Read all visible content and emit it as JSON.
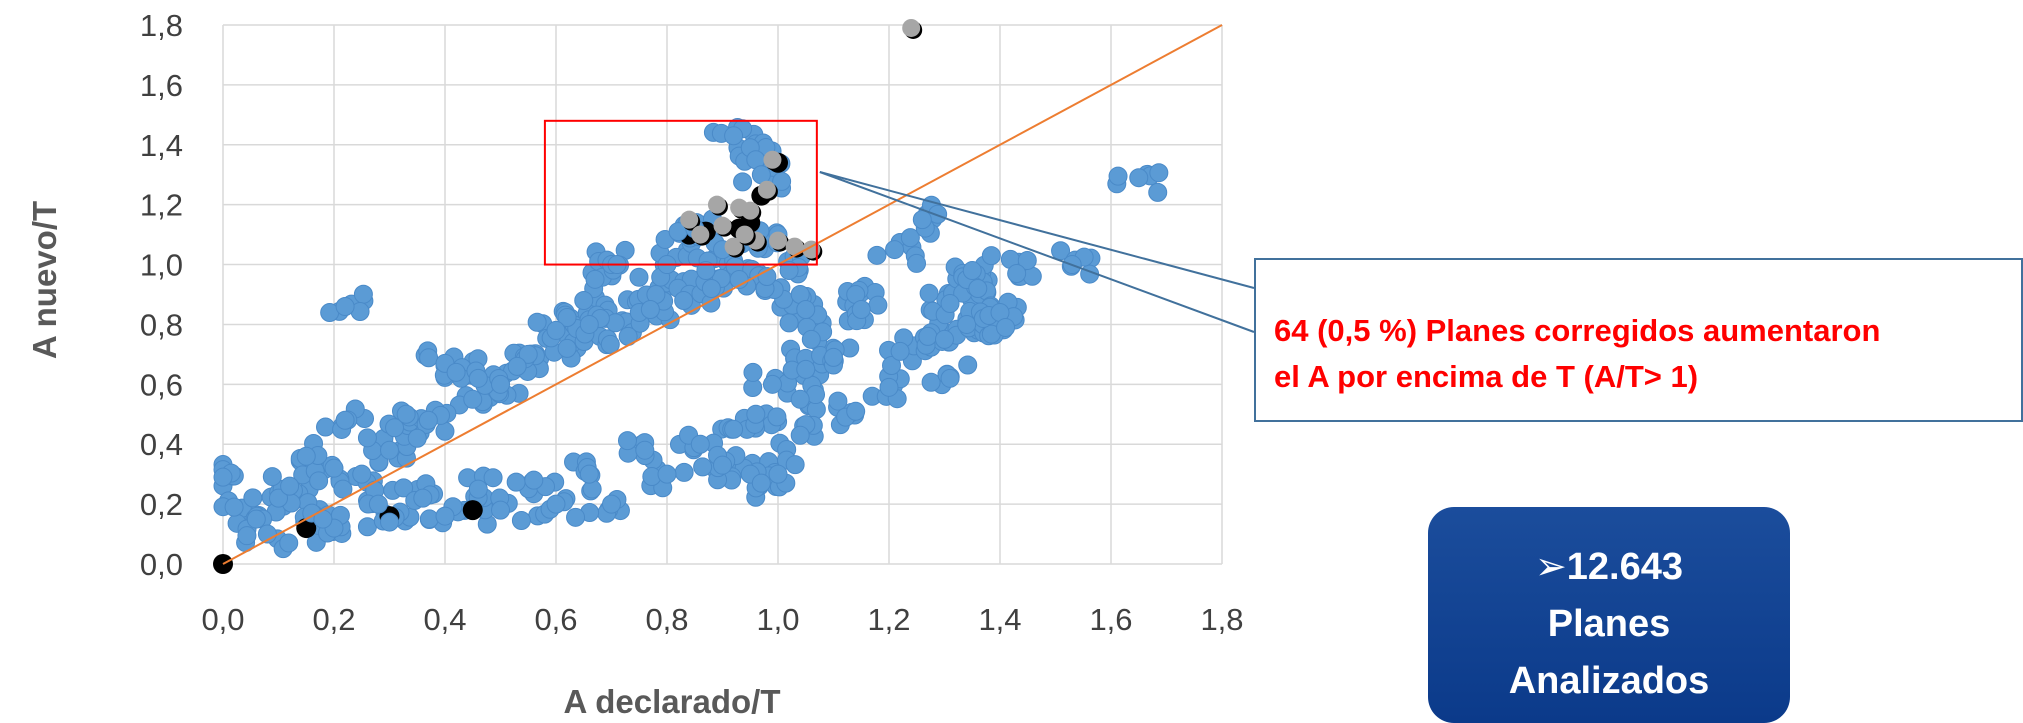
{
  "chart_data": {
    "type": "scatter",
    "title": "",
    "xlabel": "A declarado/T",
    "ylabel": "A nuevo/T",
    "xlim": [
      0,
      1.8
    ],
    "ylim": [
      0,
      1.8
    ],
    "x_ticks": [
      "0,0",
      "0,2",
      "0,4",
      "0,6",
      "0,8",
      "1,0",
      "1,2",
      "1,4",
      "1,6",
      "1,8"
    ],
    "y_ticks": [
      "0,0",
      "0,2",
      "0,4",
      "0,6",
      "0,8",
      "1,0",
      "1,2",
      "1,4",
      "1,6",
      "1,8"
    ],
    "grid": true,
    "legend": "none",
    "reference_line": {
      "from": [
        0,
        0
      ],
      "to": [
        1.8,
        1.8
      ],
      "color": "#ed7d31"
    },
    "highlight_region": {
      "x": [
        0.58,
        1.07
      ],
      "y": [
        1.0,
        1.48
      ],
      "color": "#ff0000"
    },
    "series": [
      {
        "color": "#5b9bd5",
        "description": "Planes analizados (nube densa aproximada por puntos representativos)",
        "points": [
          [
            0.0,
            0.29
          ],
          [
            0.02,
            0.19
          ],
          [
            0.22,
            0.86
          ],
          [
            0.22,
            0.48
          ],
          [
            0.15,
            0.36
          ],
          [
            0.1,
            0.22
          ],
          [
            0.12,
            0.26
          ],
          [
            0.2,
            0.32
          ],
          [
            0.25,
            0.3
          ],
          [
            0.3,
            0.38
          ],
          [
            0.35,
            0.42
          ],
          [
            0.4,
            0.67
          ],
          [
            0.42,
            0.64
          ],
          [
            0.45,
            0.55
          ],
          [
            0.5,
            0.6
          ],
          [
            0.55,
            0.7
          ],
          [
            0.6,
            0.78
          ],
          [
            0.65,
            0.88
          ],
          [
            0.68,
            0.82
          ],
          [
            0.7,
            1.0
          ],
          [
            0.71,
            1.0
          ],
          [
            0.75,
            0.84
          ],
          [
            0.78,
            0.9
          ],
          [
            0.8,
            1.0
          ],
          [
            0.82,
            1.11
          ],
          [
            0.85,
            1.12
          ],
          [
            0.87,
            0.98
          ],
          [
            0.9,
            1.05
          ],
          [
            0.92,
            1.43
          ],
          [
            0.95,
            1.39
          ],
          [
            0.96,
            1.35
          ],
          [
            0.97,
            1.3
          ],
          [
            1.0,
            1.1
          ],
          [
            1.02,
            0.98
          ],
          [
            1.04,
            0.9
          ],
          [
            1.05,
            0.85
          ],
          [
            1.06,
            0.75
          ],
          [
            1.05,
            0.65
          ],
          [
            1.04,
            0.55
          ],
          [
            1.04,
            0.43
          ],
          [
            1.1,
            0.69
          ],
          [
            1.14,
            0.9
          ],
          [
            1.15,
            0.85
          ],
          [
            1.14,
            0.51
          ],
          [
            1.2,
            0.59
          ],
          [
            1.21,
            1.05
          ],
          [
            1.22,
            0.71
          ],
          [
            1.26,
            1.15
          ],
          [
            1.27,
            0.76
          ],
          [
            1.3,
            0.75
          ],
          [
            1.31,
            0.62
          ],
          [
            1.31,
            0.87
          ],
          [
            1.34,
            0.8
          ],
          [
            1.34,
            0.95
          ],
          [
            1.35,
            0.98
          ],
          [
            1.36,
            0.92
          ],
          [
            1.37,
            0.82
          ],
          [
            1.38,
            0.83
          ],
          [
            1.4,
            0.84
          ],
          [
            1.41,
            0.79
          ],
          [
            1.43,
            0.97
          ],
          [
            1.53,
            1.0
          ],
          [
            1.65,
            1.29
          ],
          [
            0.95,
            0.3
          ],
          [
            0.9,
            0.33
          ],
          [
            0.8,
            0.3
          ],
          [
            0.7,
            0.2
          ],
          [
            0.6,
            0.2
          ],
          [
            0.5,
            0.18
          ],
          [
            0.4,
            0.16
          ],
          [
            0.3,
            0.14
          ],
          [
            0.2,
            0.12
          ],
          [
            0.97,
            0.27
          ],
          [
            1.0,
            0.3
          ],
          [
            0.06,
            0.15
          ],
          [
            0.08,
            0.1
          ],
          [
            0.16,
            0.17
          ],
          [
            0.18,
            0.15
          ],
          [
            0.28,
            0.2
          ],
          [
            0.33,
            0.5
          ],
          [
            0.37,
            0.48
          ],
          [
            0.46,
            0.62
          ],
          [
            0.53,
            0.66
          ],
          [
            0.62,
            0.72
          ],
          [
            0.66,
            0.8
          ],
          [
            0.73,
            0.76
          ],
          [
            0.77,
            0.85
          ],
          [
            0.83,
            0.88
          ],
          [
            0.88,
            0.92
          ],
          [
            0.93,
            0.95
          ],
          [
            0.98,
            0.96
          ],
          [
            0.99,
            0.6
          ],
          [
            0.96,
            0.5
          ],
          [
            0.92,
            0.45
          ],
          [
            0.86,
            0.4
          ],
          [
            0.76,
            0.38
          ],
          [
            0.66,
            0.3
          ],
          [
            0.56,
            0.28
          ],
          [
            0.46,
            0.25
          ],
          [
            0.36,
            0.22
          ]
        ]
      },
      {
        "color": "#a6a6a6",
        "description": "Planes corregidos con A/T > 1",
        "points": [
          [
            1.24,
            1.79
          ],
          [
            0.84,
            1.15
          ],
          [
            0.89,
            1.2
          ],
          [
            0.93,
            1.19
          ],
          [
            0.95,
            1.18
          ],
          [
            0.98,
            1.25
          ],
          [
            0.99,
            1.35
          ],
          [
            0.86,
            1.1
          ],
          [
            0.92,
            1.06
          ],
          [
            0.96,
            1.08
          ],
          [
            1.0,
            1.08
          ],
          [
            1.03,
            1.06
          ],
          [
            1.06,
            1.05
          ],
          [
            0.9,
            1.13
          ],
          [
            0.94,
            1.1
          ]
        ]
      },
      {
        "color": "#000000",
        "description": "Puntos con borde negro",
        "points": [
          [
            0.0,
            0.0
          ],
          [
            0.84,
            1.1
          ],
          [
            0.87,
            1.11
          ],
          [
            0.93,
            1.12
          ],
          [
            0.97,
            1.23
          ],
          [
            1.0,
            1.34
          ],
          [
            0.95,
            1.14
          ],
          [
            0.15,
            0.12
          ],
          [
            0.3,
            0.16
          ],
          [
            0.45,
            0.18
          ]
        ]
      }
    ],
    "annotation": {
      "lines": [
        "64 (0,5 %) Planes corregidos aumentaron",
        "el A por encima de T (A/T> 1)"
      ],
      "color": "#ff0000"
    }
  },
  "summary_box": {
    "count": "➢12.643",
    "line2": "Planes",
    "line3": "Analizados",
    "color": "#0d3f8f"
  }
}
